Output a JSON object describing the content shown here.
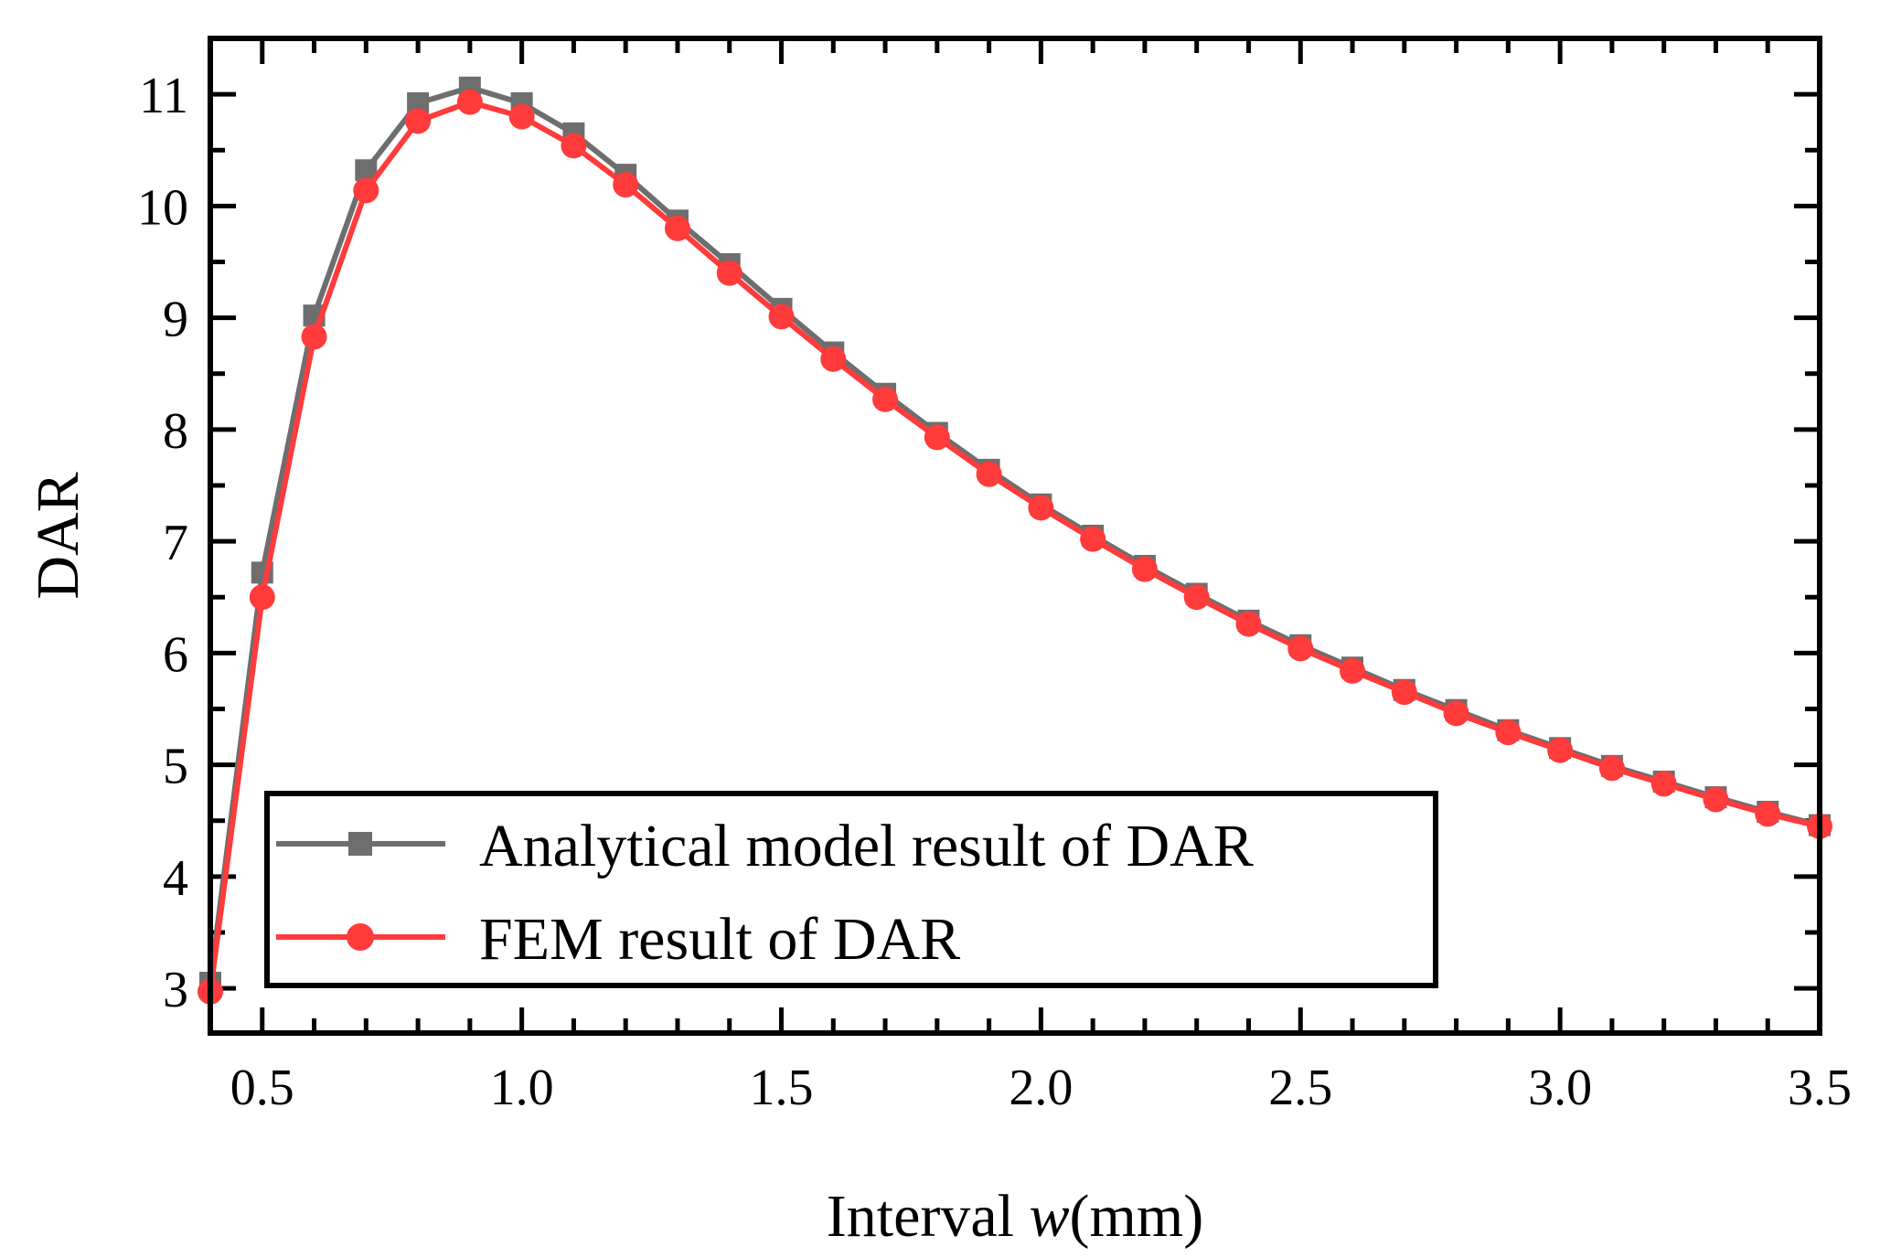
{
  "chart_data": {
    "type": "line",
    "title": "",
    "xlabel_prefix": "Interval ",
    "xlabel_var": "w",
    "xlabel_suffix": "(mm)",
    "ylabel": "DAR",
    "xlim": [
      0.4,
      3.5
    ],
    "ylim": [
      2.6,
      11.5
    ],
    "xticks": [
      0.5,
      1.0,
      1.5,
      2.0,
      2.5,
      3.0,
      3.5
    ],
    "xtick_labels": [
      "0.5",
      "1.0",
      "1.5",
      "2.0",
      "2.5",
      "3.0",
      "3.5"
    ],
    "yticks": [
      3,
      4,
      5,
      6,
      7,
      8,
      9,
      10,
      11
    ],
    "ytick_labels": [
      "3",
      "4",
      "5",
      "6",
      "7",
      "8",
      "9",
      "10",
      "11"
    ],
    "grid": false,
    "legend_position": "bottom-left",
    "x": [
      0.4,
      0.5,
      0.6,
      0.7,
      0.8,
      0.9,
      1.0,
      1.1,
      1.2,
      1.3,
      1.4,
      1.5,
      1.6,
      1.7,
      1.8,
      1.9,
      2.0,
      2.1,
      2.2,
      2.3,
      2.4,
      2.5,
      2.6,
      2.7,
      2.8,
      2.9,
      3.0,
      3.1,
      3.2,
      3.3,
      3.4,
      3.5
    ],
    "series": [
      {
        "name": "Analytical model result of DAR",
        "color": "#6e6e6e",
        "marker": "square",
        "values": [
          3.05,
          6.72,
          9.02,
          10.32,
          10.92,
          11.06,
          10.92,
          10.65,
          10.28,
          9.87,
          9.48,
          9.08,
          8.69,
          8.32,
          7.97,
          7.64,
          7.33,
          7.05,
          6.78,
          6.53,
          6.29,
          6.07,
          5.87,
          5.67,
          5.49,
          5.31,
          5.15,
          4.99,
          4.85,
          4.71,
          4.58,
          4.46
        ]
      },
      {
        "name": "FEM result of DAR",
        "color": "#ff3b3b",
        "marker": "circle",
        "values": [
          2.97,
          6.5,
          8.83,
          10.14,
          10.76,
          10.93,
          10.8,
          10.54,
          10.19,
          9.8,
          9.4,
          9.01,
          8.63,
          8.27,
          7.93,
          7.6,
          7.3,
          7.02,
          6.75,
          6.5,
          6.26,
          6.04,
          5.84,
          5.65,
          5.46,
          5.29,
          5.13,
          4.97,
          4.83,
          4.69,
          4.56,
          4.45
        ]
      }
    ]
  }
}
